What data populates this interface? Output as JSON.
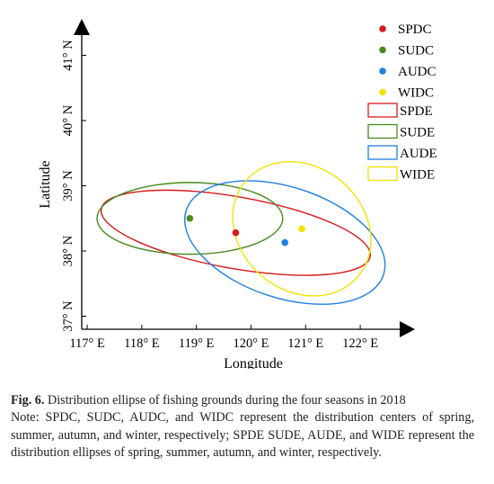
{
  "chart_data": {
    "type": "scatter",
    "xlabel": "Longitude",
    "ylabel": "Latitude",
    "xlim": [
      116.9,
      123.3
    ],
    "ylim": [
      36.8,
      42.3
    ],
    "x_ticks": [
      117,
      118,
      119,
      120,
      121,
      122
    ],
    "x_tick_labels": [
      "117° E",
      "118° E",
      "119° E",
      "120° E",
      "121° E",
      "122° E"
    ],
    "y_ticks": [
      37,
      38,
      39,
      40,
      41
    ],
    "y_tick_labels": [
      "37° N",
      "38° N",
      "39° N",
      "40° N",
      "41° N"
    ],
    "grid": false,
    "legend_position": "top-right",
    "centers": [
      {
        "name": "SPDC",
        "x": 119.72,
        "y": 38.28,
        "color": "#d7191c"
      },
      {
        "name": "SUDC",
        "x": 118.88,
        "y": 38.5,
        "color": "#4a8a1f"
      },
      {
        "name": "AUDC",
        "x": 120.62,
        "y": 38.13,
        "color": "#1e7fe0"
      },
      {
        "name": "WIDC",
        "x": 120.93,
        "y": 38.34,
        "color": "#f2e200"
      }
    ],
    "ellipses": [
      {
        "name": "SPDE",
        "center": [
          119.72,
          38.28
        ],
        "semi_x": 2.5,
        "semi_y": 0.55,
        "rotation_deg": -10,
        "color": "#d7191c"
      },
      {
        "name": "SUDE",
        "center": [
          118.88,
          38.5
        ],
        "semi_x": 1.7,
        "semi_y": 0.55,
        "rotation_deg": 0,
        "color": "#4a8a1f"
      },
      {
        "name": "AUDE",
        "center": [
          120.62,
          38.13
        ],
        "semi_x": 1.9,
        "semi_y": 0.85,
        "rotation_deg": -18,
        "color": "#1e7fe0"
      },
      {
        "name": "WIDE",
        "center": [
          120.93,
          38.34
        ],
        "semi_x": 1.35,
        "semi_y": 0.95,
        "rotation_deg": -40,
        "color": "#f2e200"
      }
    ]
  },
  "caption": {
    "label": "Fig. 6.",
    "text": "Distribution ellipse of fishing grounds during the four seasons in 2018",
    "note": "Note: SPDC, SUDC, AUDC, and WIDC represent the distribution centers of spring, summer, autumn, and winter, respectively; SPDE SUDE, AUDE, and WIDE represent the distribution ellipses of spring, summer, autumn, and winter, respectively."
  }
}
